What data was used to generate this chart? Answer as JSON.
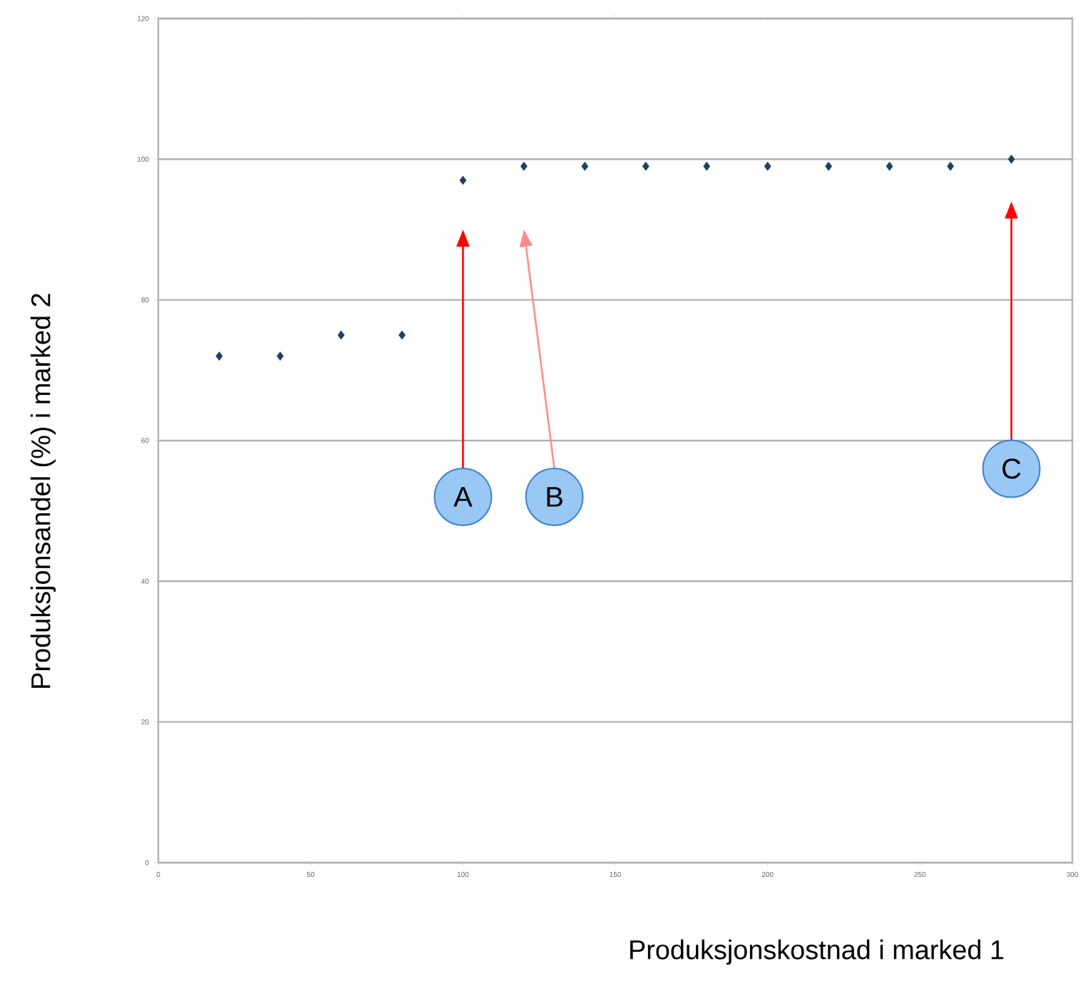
{
  "chart_data": {
    "type": "scatter",
    "xlabel": "Produksjonskostnad i marked 1",
    "ylabel": "Produksjonsandel (%) i marked 2",
    "x": [
      20,
      40,
      60,
      80,
      100,
      120,
      140,
      160,
      180,
      200,
      220,
      240,
      260,
      280
    ],
    "series": [
      {
        "color": "#1f3f66",
        "values": [
          72,
          72,
          75,
          75,
          97,
          99,
          99,
          99,
          99,
          99,
          99,
          99,
          99,
          100
        ]
      }
    ],
    "xlim": [
      0,
      300
    ],
    "xticks": [
      0,
      50,
      100,
      150,
      200,
      250,
      300
    ],
    "ylim": [
      0,
      120
    ],
    "yticks": [
      0,
      20,
      40,
      60,
      80,
      100,
      120
    ],
    "grid": "y",
    "marker": "diamond",
    "annotations": [
      {
        "text": "A",
        "x": 100,
        "y": 52
      },
      {
        "text": "B",
        "x": 130,
        "y": 52
      },
      {
        "text": "C",
        "x": 280,
        "y": 56
      }
    ]
  }
}
